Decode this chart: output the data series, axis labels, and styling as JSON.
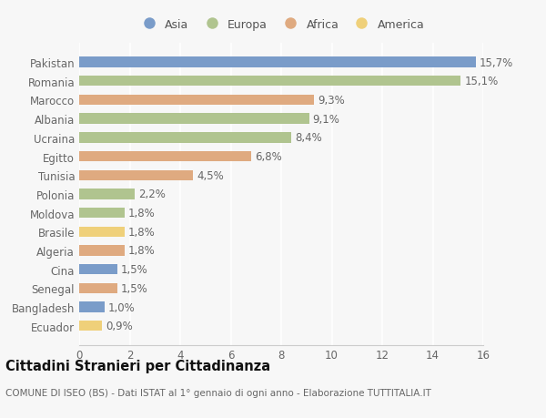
{
  "categories": [
    "Pakistan",
    "Romania",
    "Marocco",
    "Albania",
    "Ucraina",
    "Egitto",
    "Tunisia",
    "Polonia",
    "Moldova",
    "Brasile",
    "Algeria",
    "Cina",
    "Senegal",
    "Bangladesh",
    "Ecuador"
  ],
  "values": [
    15.7,
    15.1,
    9.3,
    9.1,
    8.4,
    6.8,
    4.5,
    2.2,
    1.8,
    1.8,
    1.8,
    1.5,
    1.5,
    1.0,
    0.9
  ],
  "labels": [
    "15,7%",
    "15,1%",
    "9,3%",
    "9,1%",
    "8,4%",
    "6,8%",
    "4,5%",
    "2,2%",
    "1,8%",
    "1,8%",
    "1,8%",
    "1,5%",
    "1,5%",
    "1,0%",
    "0,9%"
  ],
  "continents": [
    "Asia",
    "Europa",
    "Africa",
    "Europa",
    "Europa",
    "Africa",
    "Africa",
    "Europa",
    "Europa",
    "America",
    "Africa",
    "Asia",
    "Africa",
    "Asia",
    "America"
  ],
  "colors": {
    "Asia": "#7a9cc9",
    "Europa": "#b0c48f",
    "Africa": "#dfaa80",
    "America": "#efd07a"
  },
  "title": "Cittadini Stranieri per Cittadinanza",
  "subtitle": "COMUNE DI ISEO (BS) - Dati ISTAT al 1° gennaio di ogni anno - Elaborazione TUTTITALIA.IT",
  "xlim": [
    0,
    16
  ],
  "xticks": [
    0,
    2,
    4,
    6,
    8,
    10,
    12,
    14,
    16
  ],
  "background_color": "#f7f7f7",
  "grid_color": "#ffffff",
  "bar_height": 0.55,
  "label_fontsize": 8.5,
  "tick_fontsize": 8.5,
  "title_fontsize": 10.5,
  "subtitle_fontsize": 7.5,
  "legend_fontsize": 9
}
